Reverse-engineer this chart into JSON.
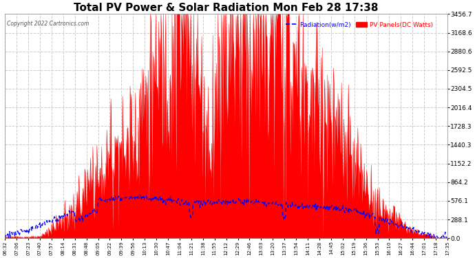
{
  "title": "Total PV Power & Solar Radiation Mon Feb 28 17:38",
  "copyright": "Copyright 2022 Cartronics.com",
  "legend_radiation": "Radiation(w/m2)",
  "legend_pv": "PV Panels(DC Watts)",
  "legend_radiation_color": "blue",
  "legend_pv_color": "red",
  "y_max": 3456.7,
  "y_min": 0.0,
  "y_ticks": [
    0.0,
    288.1,
    576.1,
    864.2,
    1152.2,
    1440.3,
    1728.3,
    2016.4,
    2304.5,
    2592.5,
    2880.6,
    3168.6,
    3456.7
  ],
  "background_color": "#ffffff",
  "plot_bg_color": "#ffffff",
  "grid_color": "#cccccc",
  "title_fontsize": 11,
  "title_color": "#000000",
  "x_tick_labels": [
    "06:32",
    "07:06",
    "07:23",
    "07:40",
    "07:57",
    "08:14",
    "08:31",
    "08:48",
    "09:05",
    "09:22",
    "09:39",
    "09:56",
    "10:13",
    "10:30",
    "10:47",
    "11:04",
    "11:21",
    "11:38",
    "11:55",
    "12:12",
    "12:29",
    "12:46",
    "13:03",
    "13:20",
    "13:37",
    "13:54",
    "14:11",
    "14:28",
    "14:45",
    "15:02",
    "15:19",
    "15:36",
    "15:53",
    "16:10",
    "16:27",
    "16:44",
    "17:01",
    "17:18",
    "17:35"
  ],
  "pv_fill_color": "red",
  "pv_line_color": "red",
  "radiation_line_color": "blue",
  "radiation_line_style": "--"
}
